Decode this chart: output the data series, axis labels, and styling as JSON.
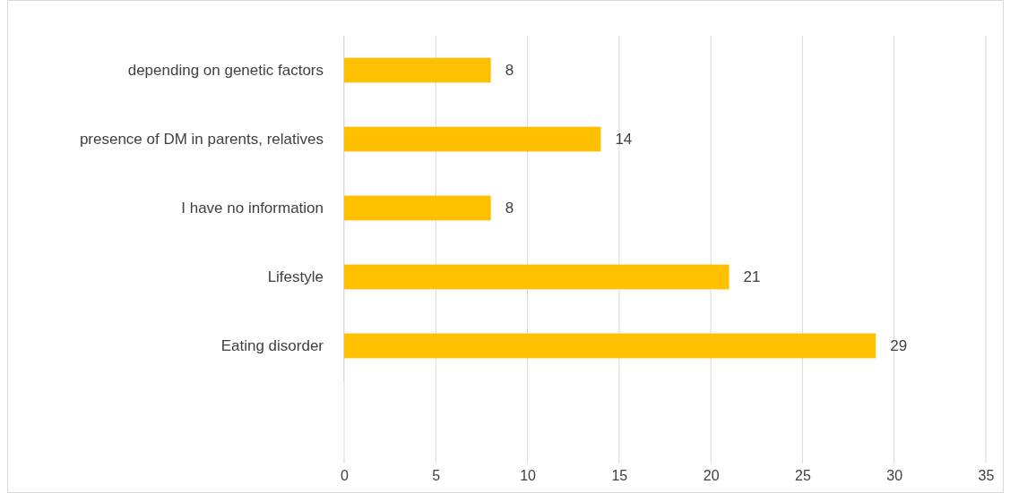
{
  "chart_data": {
    "type": "bar",
    "orientation": "horizontal",
    "categories": [
      "depending on genetic factors",
      "presence of DM in parents, relatives",
      "I have no information",
      "Lifestyle",
      "Eating disorder"
    ],
    "values": [
      8,
      14,
      8,
      21,
      29
    ],
    "color": "#ffc000",
    "xlim": [
      0,
      35
    ],
    "xticks": [
      0,
      5,
      10,
      15,
      20,
      25,
      30,
      35
    ],
    "grid": "x",
    "data_labels": true
  }
}
